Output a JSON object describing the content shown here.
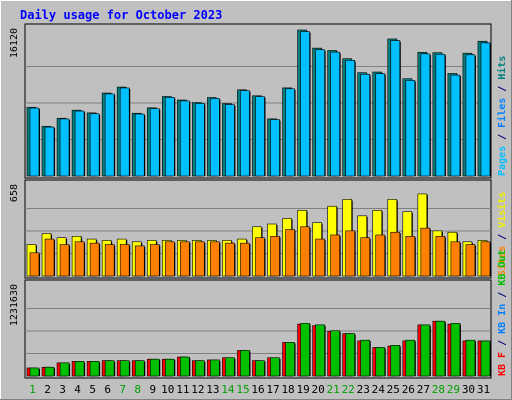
{
  "chart_data": {
    "type": "bar",
    "title": "Daily usage for October 2023",
    "categories": [
      "1",
      "2",
      "3",
      "4",
      "5",
      "6",
      "7",
      "8",
      "9",
      "10",
      "11",
      "12",
      "13",
      "14",
      "15",
      "16",
      "17",
      "18",
      "19",
      "20",
      "21",
      "22",
      "23",
      "24",
      "25",
      "26",
      "27",
      "28",
      "29",
      "30",
      "31"
    ],
    "weekend_days": [
      "1",
      "7",
      "8",
      "14",
      "15",
      "21",
      "22",
      "28",
      "29"
    ],
    "panels": [
      {
        "id": "hits",
        "ymax": 16120,
        "ymax_label": "16120",
        "side_label": [
          {
            "text": "Pages",
            "color": "#00c0ff"
          },
          {
            "text": " / ",
            "color": "#000080"
          },
          {
            "text": "Files",
            "color": "#0080ff"
          },
          {
            "text": " / ",
            "color": "#000080"
          },
          {
            "text": "Hits",
            "color": "#008080"
          }
        ],
        "series": [
          {
            "name": "Hits",
            "color": "#008080",
            "values": [
              7590,
              5490,
              6380,
              7270,
              6970,
              9160,
              9820,
              6930,
              7530,
              8780,
              8390,
              8110,
              8660,
              7980,
              9520,
              8860,
              6310,
              9730,
              16120,
              14120,
              13860,
              12950,
              11410,
              11480,
              15130,
              10740,
              13660,
              13620,
              11320,
              13560,
              14880
            ]
          },
          {
            "name": "Files",
            "color": "#00c0ff",
            "values": [
              7500,
              5400,
              6300,
              7170,
              6870,
              9060,
              9720,
              6840,
              7430,
              8680,
              8290,
              8010,
              8560,
              7880,
              9420,
              8760,
              6230,
              9630,
              15940,
              13940,
              13680,
              12770,
              11230,
              11300,
              14950,
              10560,
              13480,
              13440,
              11140,
              13380,
              14700
            ]
          },
          {
            "name": "Pages",
            "color": "#00c0ff",
            "values": [
              0,
              0,
              0,
              0,
              0,
              0,
              0,
              0,
              0,
              0,
              0,
              0,
              0,
              0,
              0,
              0,
              0,
              0,
              0,
              0,
              0,
              0,
              0,
              0,
              0,
              0,
              0,
              0,
              0,
              0,
              0
            ]
          }
        ]
      },
      {
        "id": "visits",
        "ymax": 658,
        "ymax_label": "658",
        "side_label": [
          {
            "text": "Sites",
            "color": "#ff8000"
          },
          {
            "text": " / ",
            "color": "#000080"
          },
          {
            "text": "Visits",
            "color": "#f0f000"
          }
        ],
        "series": [
          {
            "name": "Visits",
            "color": "#ffff00",
            "values": [
              230,
              310,
              280,
              290,
              270,
              260,
              270,
              250,
              260,
              260,
              260,
              260,
              260,
              260,
              270,
              360,
              380,
              420,
              480,
              390,
              510,
              560,
              440,
              480,
              560,
              470,
              600,
              330,
              320,
              250,
              260
            ]
          },
          {
            "name": "Sites",
            "color": "#ff8000",
            "values": [
              170,
              270,
              230,
              250,
              240,
              230,
              230,
              220,
              230,
              250,
              250,
              250,
              250,
              240,
              240,
              280,
              290,
              340,
              360,
              270,
              300,
              330,
              280,
              300,
              320,
              290,
              350,
              290,
              250,
              230,
              250
            ]
          }
        ]
      },
      {
        "id": "kbytes",
        "ymax": 1231630,
        "ymax_label": "1231630",
        "side_label": [
          {
            "text": "KB F",
            "color": "#ff0000"
          },
          {
            "text": " / ",
            "color": "#000080"
          },
          {
            "text": "KB In",
            "color": "#0080ff"
          },
          {
            "text": " / ",
            "color": "#000080"
          },
          {
            "text": "KB Out",
            "color": "#00c000"
          }
        ],
        "series": [
          {
            "name": "KB F",
            "color": "#ff0000",
            "values": [
              110000,
              120000,
              180000,
              200000,
              200000,
              210000,
              210000,
              210000,
              230000,
              230000,
              260000,
              210000,
              220000,
              250000,
              350000,
              210000,
              250000,
              460000,
              710000,
              690000,
              610000,
              580000,
              480000,
              390000,
              410000,
              480000,
              700000,
              750000,
              710000,
              480000,
              480000
            ]
          },
          {
            "name": "KB Out",
            "color": "#00c000",
            "values": [
              110000,
              120000,
              180000,
              200000,
              200000,
              210000,
              210000,
              210000,
              230000,
              230000,
              260000,
              210000,
              220000,
              250000,
              350000,
              210000,
              250000,
              460000,
              720000,
              700000,
              620000,
              580000,
              490000,
              390000,
              420000,
              490000,
              700000,
              750000,
              720000,
              490000,
              480000
            ]
          }
        ]
      }
    ]
  }
}
